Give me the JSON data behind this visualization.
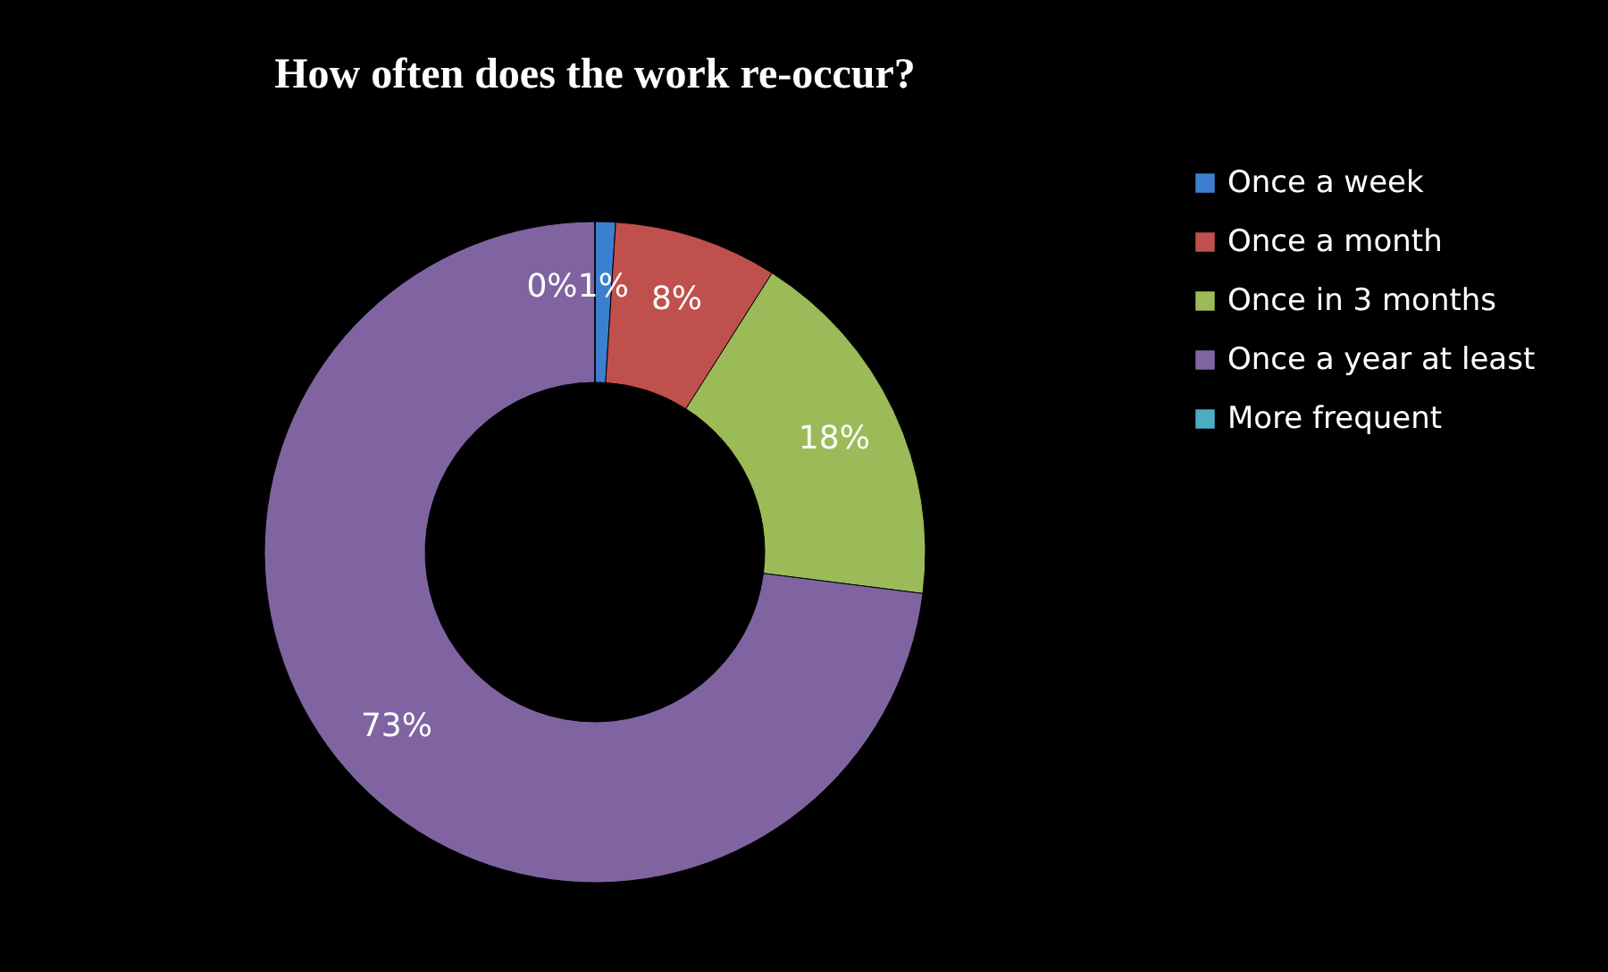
{
  "chart_data": {
    "type": "donut",
    "title": "How often does the work re-occur?",
    "categories": [
      "Once a week",
      "Once a month",
      "Once in 3 months",
      "Once a year at least",
      "More frequent"
    ],
    "values": [
      1,
      8,
      18,
      73,
      0
    ],
    "colors": [
      "#3c7fd0",
      "#c0504d",
      "#9bbb59",
      "#8064a2",
      "#4bacc6"
    ],
    "value_labels": [
      "1%",
      "8%",
      "18%",
      "73%",
      "0%"
    ],
    "legend": "right"
  }
}
